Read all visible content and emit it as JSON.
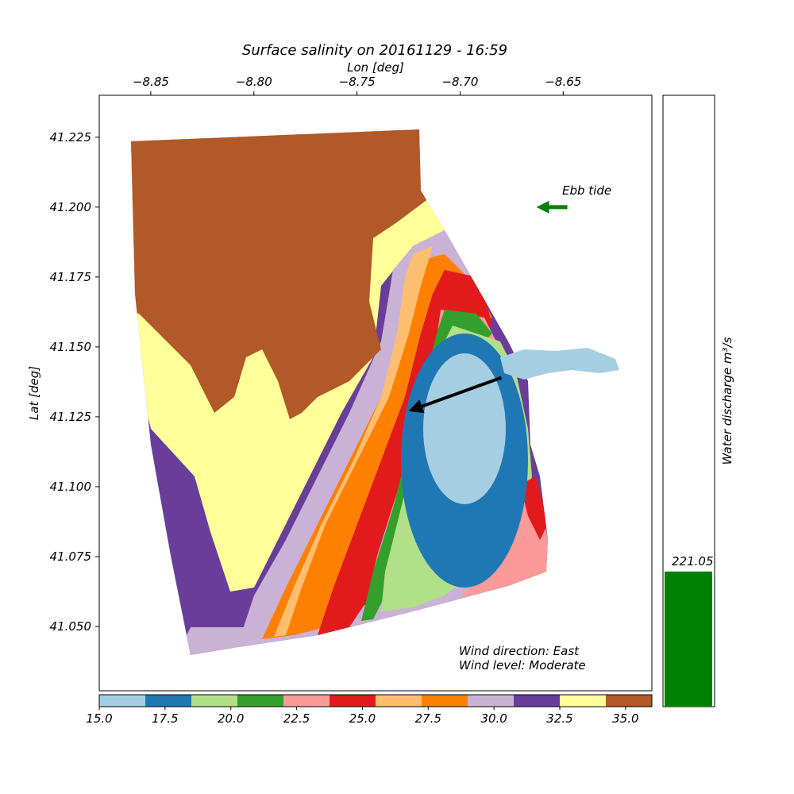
{
  "chart_data": {
    "type": "scatter",
    "title": "Surface salinity on 20161129 - 16:59",
    "xlabel": "Lon [deg]",
    "ylabel": "Lat [deg]",
    "xlim": [
      -8.875,
      -8.607
    ],
    "ylim": [
      41.027,
      41.24
    ],
    "xticks": [
      -8.85,
      -8.8,
      -8.75,
      -8.7,
      -8.65
    ],
    "xtick_labels": [
      "−8.85",
      "−8.80",
      "−8.75",
      "−8.70",
      "−8.65"
    ],
    "yticks": [
      41.05,
      41.075,
      41.1,
      41.125,
      41.15,
      41.175,
      41.2,
      41.225
    ],
    "ytick_labels": [
      "41.050",
      "41.075",
      "41.100",
      "41.125",
      "41.150",
      "41.175",
      "41.200",
      "41.225"
    ],
    "x_axis_position": "top",
    "colorbar": {
      "min": 15.0,
      "max": 36.0,
      "ticks": [
        15.0,
        17.5,
        20.0,
        22.5,
        25.0,
        27.5,
        30.0,
        32.5,
        35.0
      ],
      "tick_labels": [
        "15.0",
        "17.5",
        "20.0",
        "22.5",
        "25.0",
        "27.5",
        "30.0",
        "32.5",
        "35.0"
      ],
      "colors": [
        "#a6cee3",
        "#1f78b4",
        "#b2df8a",
        "#33a02c",
        "#fb9a99",
        "#e31a1c",
        "#fdbf6f",
        "#ff7f00",
        "#cab2d6",
        "#6a3d9a",
        "#ffff99",
        "#b15928"
      ]
    },
    "salinity_field": {
      "description_colors_by_band": [
        "#b15928",
        "#ffff99",
        "#6a3d9a",
        "#cab2d6",
        "#fdbf6f",
        "#ff7f00",
        "#e31a1c",
        "#fb9a99",
        "#33a02c",
        "#b2df8a",
        "#1f78b4",
        "#a6cee3"
      ]
    },
    "annotations": {
      "tide_label": "Ebb tide",
      "tide_arrow": {
        "from": [
          -8.648,
          41.2
        ],
        "to": [
          -8.663,
          41.2
        ],
        "color": "#008000"
      },
      "wind_arrow": {
        "from": [
          -8.68,
          41.139
        ],
        "to": [
          -8.725,
          41.127
        ],
        "color": "#000000"
      },
      "wind_direction": "Wind direction: East",
      "wind_level": "Wind level: Moderate"
    },
    "discharge": {
      "label": "Water discharge m³/s",
      "value": 221.05,
      "value_label": "221.05",
      "max": 1000,
      "color": "#008000"
    }
  }
}
